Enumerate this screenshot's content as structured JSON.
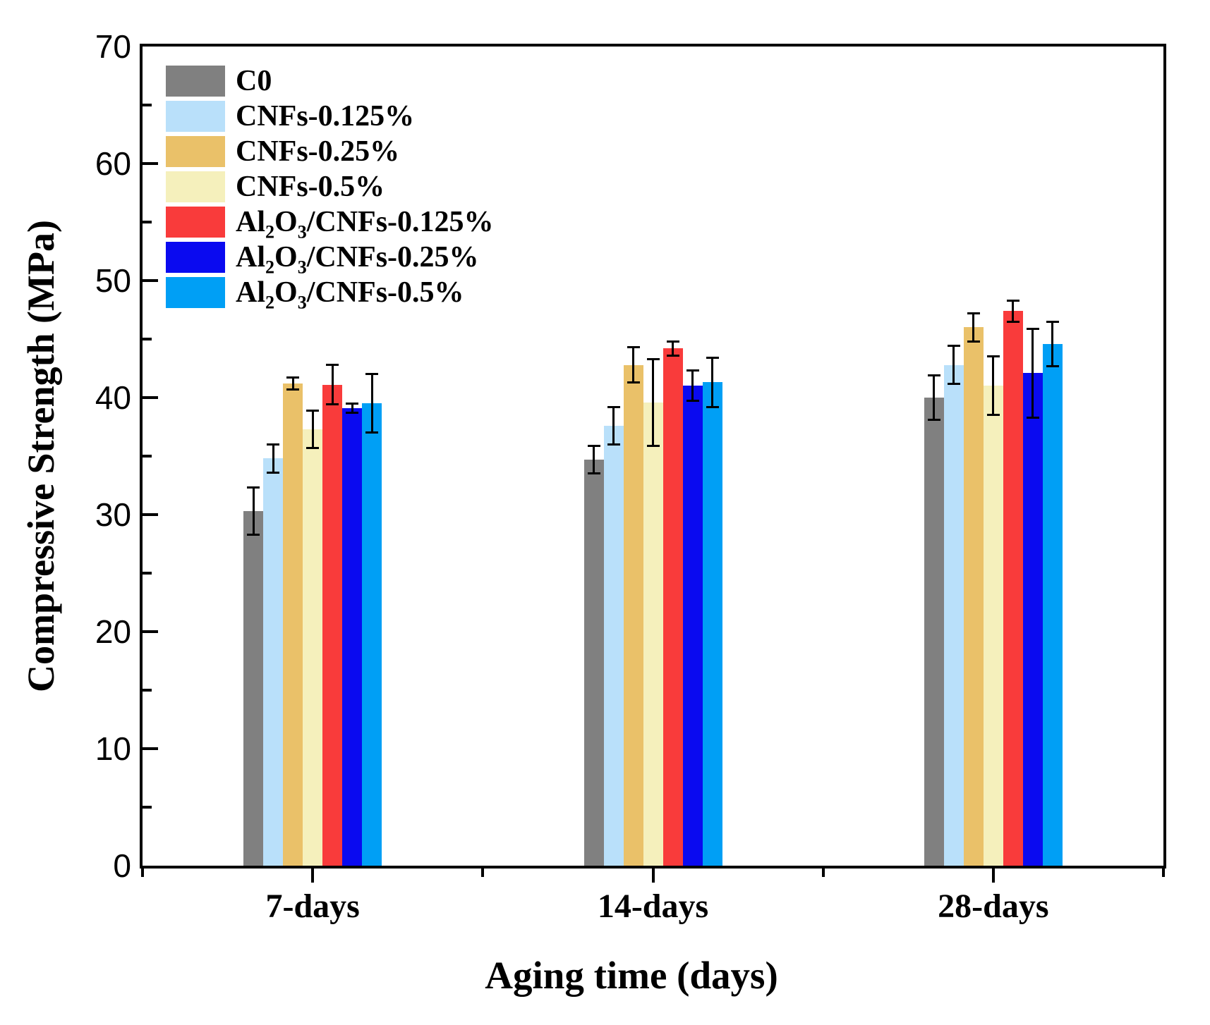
{
  "chart_data": {
    "type": "bar",
    "title": "",
    "xlabel": "Aging time (days)",
    "ylabel": "Compressive Strength (MPa)",
    "ylim": [
      0,
      70
    ],
    "yticks_major": [
      0,
      10,
      20,
      30,
      40,
      50,
      60,
      70
    ],
    "ytick_minor_step": 5,
    "grid": false,
    "legend_position": "top-left-inside",
    "categories": [
      "7-days",
      "14-days",
      "28-days"
    ],
    "series": [
      {
        "name": "C0",
        "label_rich": "C0",
        "color": "#808080",
        "values": [
          30.3,
          34.7,
          40.0
        ],
        "errors": [
          2.0,
          1.2,
          1.9
        ]
      },
      {
        "name": "CNFs-0.125%",
        "label_rich": "CNFs-0.125%",
        "color": "#b9e0fa",
        "values": [
          34.8,
          37.6,
          42.8
        ],
        "errors": [
          1.2,
          1.6,
          1.6
        ]
      },
      {
        "name": "CNFs-0.25%",
        "label_rich": "CNFs-0.25%",
        "color": "#eac169",
        "values": [
          41.2,
          42.8,
          46.0
        ],
        "errors": [
          0.5,
          1.5,
          1.2
        ]
      },
      {
        "name": "CNFs-0.5%",
        "label_rich": "CNFs-0.5%",
        "color": "#f5f0bc",
        "values": [
          37.3,
          39.6,
          41.0
        ],
        "errors": [
          1.6,
          3.7,
          2.5
        ]
      },
      {
        "name": "Al2O3/CNFs-0.125%",
        "label_rich": "Al~2~O~3~/CNFs-0.125%",
        "color": "#f93b3b",
        "values": [
          41.1,
          44.2,
          47.4
        ],
        "errors": [
          1.7,
          0.6,
          0.9
        ]
      },
      {
        "name": "Al2O3/CNFs-0.25%",
        "label_rich": "Al~2~O~3~/CNFs-0.25%",
        "color": "#0a0af0",
        "values": [
          39.1,
          41.0,
          42.1
        ],
        "errors": [
          0.4,
          1.3,
          3.8
        ]
      },
      {
        "name": "Al2O3/CNFs-0.5%",
        "label_rich": "Al~2~O~3~/CNFs-0.5%",
        "color": "#009ff5",
        "values": [
          39.5,
          41.3,
          44.6
        ],
        "errors": [
          2.5,
          2.1,
          1.9
        ]
      }
    ]
  }
}
